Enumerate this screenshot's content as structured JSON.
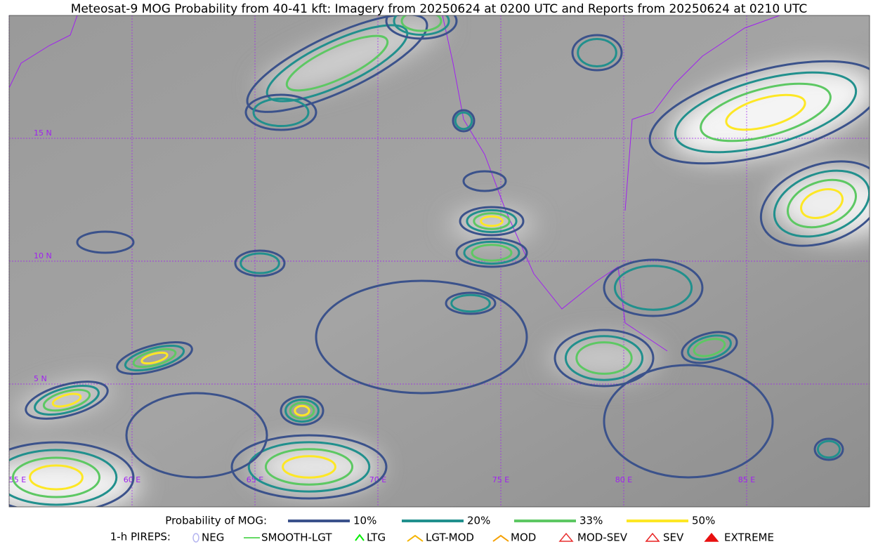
{
  "title": "Meteosat-9 MOG Probability from 40-41 kft: Imagery from 20250624 at 0200 UTC and Reports from 20250624 at 0210 UTC",
  "map": {
    "lat_labels": [
      "15 N",
      "10 N",
      "5 N"
    ],
    "lon_labels": [
      "55 E",
      "60 E",
      "65 E",
      "70 E",
      "75 E",
      "80 E",
      "85 E"
    ],
    "grid_color": "#a020f0"
  },
  "legend": {
    "label": "Probability of MOG:",
    "items": [
      {
        "label": "10%",
        "color": "#3b528b"
      },
      {
        "label": "20%",
        "color": "#21908d"
      },
      {
        "label": "33%",
        "color": "#5dc863"
      },
      {
        "label": "50%",
        "color": "#fde725"
      }
    ]
  },
  "pireps": {
    "label": "1-h PIREPS:",
    "items": [
      {
        "label": "NEG",
        "color": "#b4b4f0"
      },
      {
        "label": "SMOOTH-LGT",
        "color": "#32cd32"
      },
      {
        "label": "LTG",
        "color": "#00ee00"
      },
      {
        "label": "LGT-MOD",
        "color": "#f5b400"
      },
      {
        "label": "MOD",
        "color": "#f5a000"
      },
      {
        "label": "MOD-SEV",
        "color": "#e83030"
      },
      {
        "label": "SEV",
        "color": "#e82020"
      },
      {
        "label": "EXTREME",
        "color": "#e81010"
      }
    ]
  }
}
